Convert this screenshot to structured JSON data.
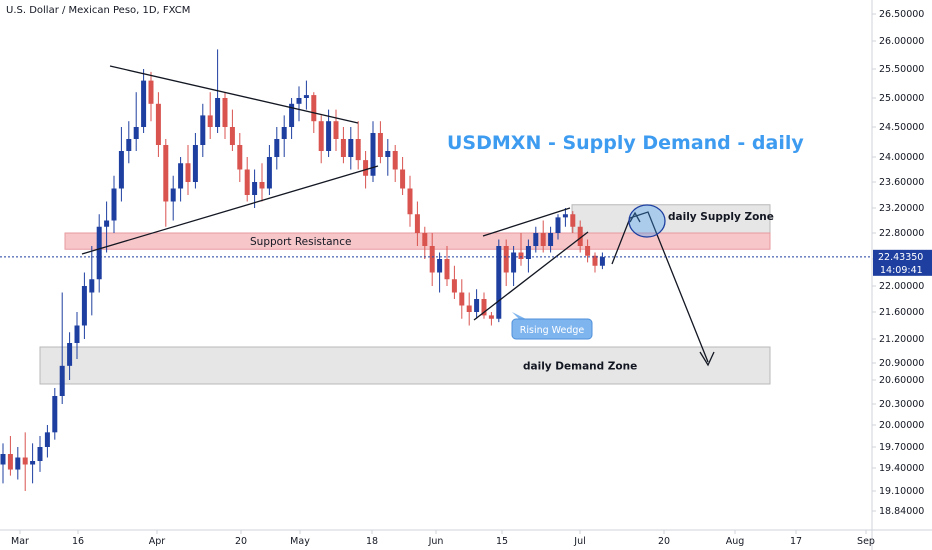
{
  "header": {
    "symbol_title": "U.S. Dollar / Mexican Peso, 1D, FXCM"
  },
  "annotations": {
    "title": "USDMXN - Supply Demand - daily",
    "supply_zone_label": "daily Supply Zone",
    "demand_zone_label": "daily Demand Zone",
    "support_resistance_label": "Support Resistance",
    "rising_wedge_label": "Rising Wedge"
  },
  "price_tag": {
    "price": "22.43350",
    "countdown": "14:09:41"
  },
  "colors": {
    "up": "#1e3fa0",
    "down": "#d9534f",
    "supply_zone": "#e6e6e6",
    "demand_zone": "#e6e6e6",
    "sr_zone": "#f7c6c9",
    "title": "#3d9bf0",
    "price_tag": "#1e3fa0"
  },
  "chart_data": {
    "type": "candlestick",
    "title": "USDMXN - Supply Demand - daily",
    "y_ticks": [
      "26.50000",
      "26.00000",
      "25.50000",
      "25.00000",
      "24.50000",
      "24.00000",
      "23.60000",
      "23.20000",
      "22.80000",
      "22.40000",
      "22.00000",
      "21.60000",
      "21.20000",
      "20.90000",
      "20.60000",
      "20.30000",
      "20.00000",
      "19.70000",
      "19.40000",
      "19.10000",
      "18.84000"
    ],
    "x_ticks": [
      "Mar",
      "16",
      "Apr",
      "20",
      "May",
      "18",
      "Jun",
      "15",
      "Jul",
      "20",
      "Aug",
      "17",
      "Sep"
    ],
    "current_price": 22.4335,
    "candles": [
      {
        "o": 19.45,
        "h": 19.75,
        "l": 19.2,
        "c": 19.6
      },
      {
        "o": 19.6,
        "h": 19.85,
        "l": 19.3,
        "c": 19.38
      },
      {
        "o": 19.38,
        "h": 19.7,
        "l": 19.25,
        "c": 19.55
      },
      {
        "o": 19.55,
        "h": 19.9,
        "l": 19.1,
        "c": 19.45
      },
      {
        "o": 19.45,
        "h": 19.75,
        "l": 19.2,
        "c": 19.5
      },
      {
        "o": 19.5,
        "h": 19.85,
        "l": 19.35,
        "c": 19.7
      },
      {
        "o": 19.7,
        "h": 20.0,
        "l": 19.55,
        "c": 19.9
      },
      {
        "o": 19.9,
        "h": 20.5,
        "l": 19.8,
        "c": 20.4
      },
      {
        "o": 20.4,
        "h": 21.9,
        "l": 20.3,
        "c": 20.85
      },
      {
        "o": 20.85,
        "h": 21.3,
        "l": 20.6,
        "c": 21.15
      },
      {
        "o": 21.15,
        "h": 21.6,
        "l": 20.95,
        "c": 21.4
      },
      {
        "o": 21.4,
        "h": 22.2,
        "l": 21.2,
        "c": 22.0
      },
      {
        "o": 21.9,
        "h": 22.6,
        "l": 21.55,
        "c": 22.1
      },
      {
        "o": 22.1,
        "h": 23.1,
        "l": 21.9,
        "c": 22.9
      },
      {
        "o": 22.9,
        "h": 23.3,
        "l": 22.5,
        "c": 23.0
      },
      {
        "o": 23.0,
        "h": 23.7,
        "l": 22.8,
        "c": 23.5
      },
      {
        "o": 23.5,
        "h": 24.5,
        "l": 23.3,
        "c": 24.1
      },
      {
        "o": 24.1,
        "h": 24.6,
        "l": 23.9,
        "c": 24.3
      },
      {
        "o": 24.3,
        "h": 25.1,
        "l": 24.1,
        "c": 24.5
      },
      {
        "o": 24.5,
        "h": 25.5,
        "l": 24.4,
        "c": 25.3
      },
      {
        "o": 25.3,
        "h": 25.45,
        "l": 24.6,
        "c": 24.9
      },
      {
        "o": 24.9,
        "h": 25.1,
        "l": 24.0,
        "c": 24.2
      },
      {
        "o": 24.2,
        "h": 24.3,
        "l": 22.9,
        "c": 23.3
      },
      {
        "o": 23.3,
        "h": 23.7,
        "l": 23.0,
        "c": 23.5
      },
      {
        "o": 23.5,
        "h": 24.0,
        "l": 23.3,
        "c": 23.9
      },
      {
        "o": 23.9,
        "h": 24.2,
        "l": 23.4,
        "c": 23.6
      },
      {
        "o": 23.6,
        "h": 24.4,
        "l": 23.5,
        "c": 24.2
      },
      {
        "o": 24.2,
        "h": 24.9,
        "l": 24.0,
        "c": 24.7
      },
      {
        "o": 24.7,
        "h": 25.1,
        "l": 24.3,
        "c": 24.5
      },
      {
        "o": 24.5,
        "h": 25.85,
        "l": 24.4,
        "c": 25.0
      },
      {
        "o": 25.0,
        "h": 25.1,
        "l": 24.3,
        "c": 24.5
      },
      {
        "o": 24.5,
        "h": 24.8,
        "l": 24.1,
        "c": 24.2
      },
      {
        "o": 24.2,
        "h": 24.4,
        "l": 23.6,
        "c": 23.8
      },
      {
        "o": 23.8,
        "h": 24.0,
        "l": 23.3,
        "c": 23.4
      },
      {
        "o": 23.4,
        "h": 23.8,
        "l": 23.2,
        "c": 23.6
      },
      {
        "o": 23.6,
        "h": 23.9,
        "l": 23.3,
        "c": 23.5
      },
      {
        "o": 23.5,
        "h": 24.2,
        "l": 23.4,
        "c": 24.0
      },
      {
        "o": 24.0,
        "h": 24.5,
        "l": 23.8,
        "c": 24.3
      },
      {
        "o": 24.3,
        "h": 24.7,
        "l": 24.0,
        "c": 24.5
      },
      {
        "o": 24.5,
        "h": 25.0,
        "l": 24.3,
        "c": 24.9
      },
      {
        "o": 24.9,
        "h": 25.2,
        "l": 24.6,
        "c": 25.0
      },
      {
        "o": 25.0,
        "h": 25.3,
        "l": 24.8,
        "c": 25.05
      },
      {
        "o": 25.05,
        "h": 25.1,
        "l": 24.4,
        "c": 24.6
      },
      {
        "o": 24.6,
        "h": 24.7,
        "l": 23.9,
        "c": 24.1
      },
      {
        "o": 24.1,
        "h": 24.8,
        "l": 24.0,
        "c": 24.6
      },
      {
        "o": 24.6,
        "h": 24.8,
        "l": 24.1,
        "c": 24.3
      },
      {
        "o": 24.3,
        "h": 24.5,
        "l": 23.9,
        "c": 24.0
      },
      {
        "o": 24.0,
        "h": 24.5,
        "l": 23.8,
        "c": 24.3
      },
      {
        "o": 24.3,
        "h": 24.6,
        "l": 23.8,
        "c": 23.95
      },
      {
        "o": 23.95,
        "h": 24.1,
        "l": 23.5,
        "c": 23.7
      },
      {
        "o": 23.7,
        "h": 24.6,
        "l": 23.6,
        "c": 24.4
      },
      {
        "o": 24.4,
        "h": 24.6,
        "l": 23.9,
        "c": 24.0
      },
      {
        "o": 24.0,
        "h": 24.3,
        "l": 23.7,
        "c": 24.1
      },
      {
        "o": 24.1,
        "h": 24.2,
        "l": 23.6,
        "c": 23.8
      },
      {
        "o": 23.8,
        "h": 24.0,
        "l": 23.4,
        "c": 23.5
      },
      {
        "o": 23.5,
        "h": 23.7,
        "l": 22.9,
        "c": 23.1
      },
      {
        "o": 23.1,
        "h": 23.3,
        "l": 22.6,
        "c": 22.8
      },
      {
        "o": 22.8,
        "h": 22.9,
        "l": 22.4,
        "c": 22.6
      },
      {
        "o": 22.6,
        "h": 22.8,
        "l": 22.0,
        "c": 22.2
      },
      {
        "o": 22.2,
        "h": 22.5,
        "l": 21.9,
        "c": 22.4
      },
      {
        "o": 22.4,
        "h": 22.6,
        "l": 22.0,
        "c": 22.1
      },
      {
        "o": 22.1,
        "h": 22.3,
        "l": 21.8,
        "c": 21.9
      },
      {
        "o": 21.9,
        "h": 22.1,
        "l": 21.5,
        "c": 21.7
      },
      {
        "o": 21.7,
        "h": 21.9,
        "l": 21.4,
        "c": 21.6
      },
      {
        "o": 21.6,
        "h": 21.95,
        "l": 21.5,
        "c": 21.8
      },
      {
        "o": 21.8,
        "h": 21.9,
        "l": 21.5,
        "c": 21.55
      },
      {
        "o": 21.55,
        "h": 21.6,
        "l": 21.4,
        "c": 21.5
      },
      {
        "o": 21.5,
        "h": 22.7,
        "l": 21.45,
        "c": 22.6
      },
      {
        "o": 22.6,
        "h": 22.7,
        "l": 22.0,
        "c": 22.2
      },
      {
        "o": 22.2,
        "h": 22.6,
        "l": 22.0,
        "c": 22.5
      },
      {
        "o": 22.5,
        "h": 22.8,
        "l": 22.3,
        "c": 22.4
      },
      {
        "o": 22.4,
        "h": 22.7,
        "l": 22.2,
        "c": 22.6
      },
      {
        "o": 22.6,
        "h": 22.9,
        "l": 22.5,
        "c": 22.8
      },
      {
        "o": 22.8,
        "h": 23.0,
        "l": 22.5,
        "c": 22.6
      },
      {
        "o": 22.6,
        "h": 22.9,
        "l": 22.5,
        "c": 22.8
      },
      {
        "o": 22.8,
        "h": 23.1,
        "l": 22.7,
        "c": 23.05
      },
      {
        "o": 23.05,
        "h": 23.2,
        "l": 22.9,
        "c": 23.1
      },
      {
        "o": 23.1,
        "h": 23.15,
        "l": 22.8,
        "c": 22.9
      },
      {
        "o": 22.9,
        "h": 23.0,
        "l": 22.5,
        "c": 22.6
      },
      {
        "o": 22.6,
        "h": 22.7,
        "l": 22.35,
        "c": 22.45
      },
      {
        "o": 22.45,
        "h": 22.5,
        "l": 22.2,
        "c": 22.3
      },
      {
        "o": 22.3,
        "h": 22.5,
        "l": 22.25,
        "c": 22.43
      }
    ],
    "supply_zone": {
      "top": 23.25,
      "bottom": 22.65,
      "label": "daily Supply Zone"
    },
    "demand_zone": {
      "top": 21.1,
      "bottom": 20.55,
      "label": "daily Demand Zone"
    },
    "support_resistance_zone": {
      "top": 22.8,
      "bottom": 22.55,
      "label": "Support Resistance"
    }
  }
}
